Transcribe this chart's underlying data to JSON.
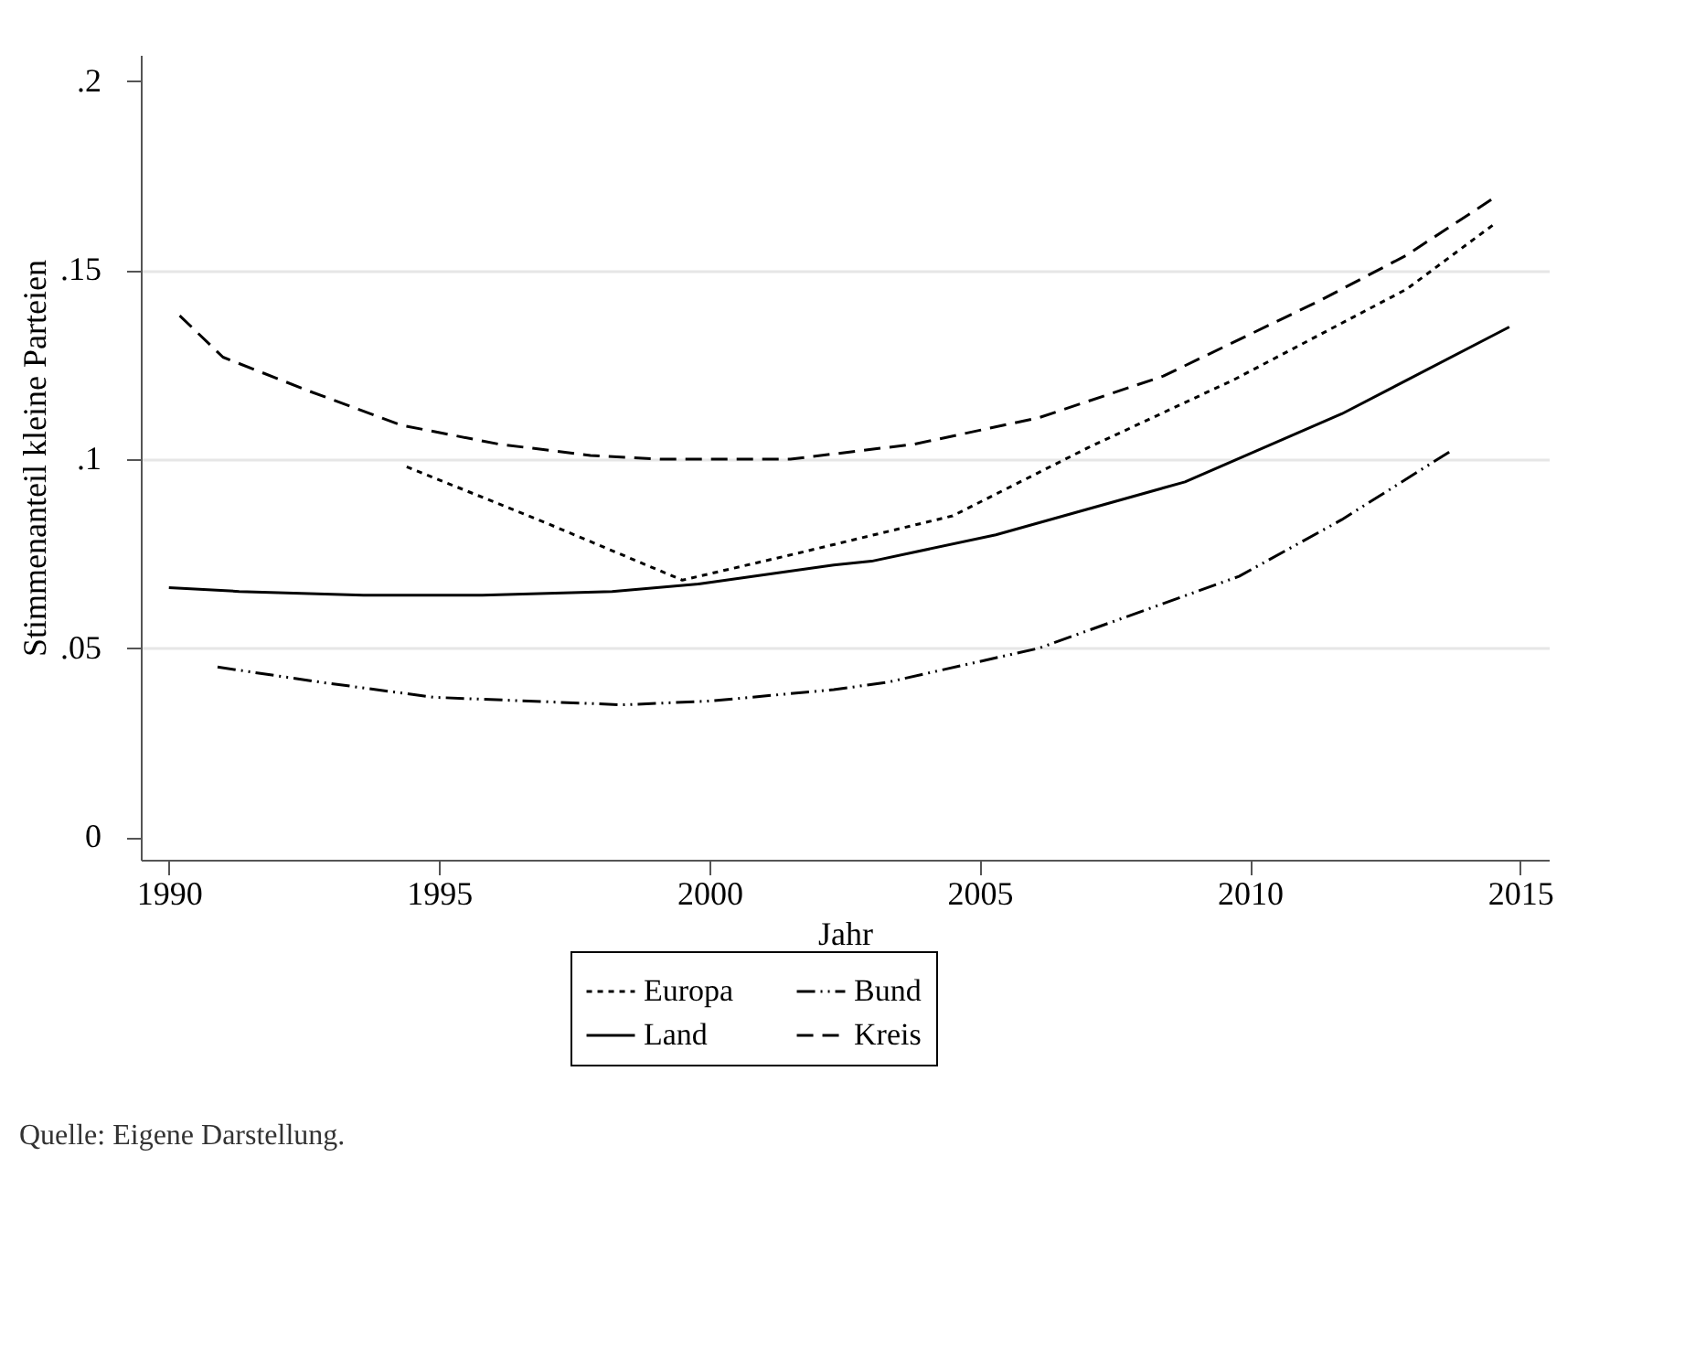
{
  "chart_data": {
    "type": "line",
    "xlabel": "Jahr",
    "ylabel": "Stimmenanteil kleine Parteien",
    "annotations": [
      "Quelle: Eigene Darstellung."
    ],
    "xlim": [
      1989.48,
      2015.53
    ],
    "xticks": [
      1990,
      1995,
      2000,
      2005,
      2010,
      2015
    ],
    "ylim": [
      -0.006,
      0.207
    ],
    "yticks": [
      {
        "value": 0,
        "label": "0"
      },
      {
        "value": 0.05,
        "label": ".05"
      },
      {
        "value": 0.1,
        "label": ".1"
      },
      {
        "value": 0.15,
        "label": ".15"
      },
      {
        "value": 0.2,
        "label": ".2"
      }
    ],
    "grid": "y",
    "legend": "bottom",
    "marker": "none",
    "series": [
      {
        "name": "Europa",
        "color": "#000000",
        "line_style": "dotted",
        "x": [
          1994.4,
          1997.0,
          1999.5,
          2001.6,
          2004.5,
          2007.0,
          2009.7,
          2012.9,
          2014.5
        ],
        "values": [
          0.098,
          0.083,
          0.068,
          0.075,
          0.085,
          0.103,
          0.121,
          0.145,
          0.162
        ]
      },
      {
        "name": "Bund",
        "color": "#000000",
        "line_style": "dashdot",
        "x": [
          1990.9,
          1992.8,
          1994.9,
          1998.4,
          2000.0,
          2002.3,
          2003.3,
          2006.1,
          2009.8,
          2011.7,
          2013.7
        ],
        "values": [
          0.045,
          0.041,
          0.037,
          0.035,
          0.036,
          0.039,
          0.041,
          0.05,
          0.069,
          0.084,
          0.102
        ]
      },
      {
        "name": "Land",
        "color": "#000000",
        "line_style": "solid",
        "x": [
          1990.0,
          1991.3,
          1993.6,
          1995.8,
          1998.2,
          1999.8,
          2002.3,
          2003.0,
          2005.3,
          2008.8,
          2011.7,
          2014.8
        ],
        "values": [
          0.066,
          0.065,
          0.064,
          0.064,
          0.065,
          0.067,
          0.072,
          0.073,
          0.08,
          0.094,
          0.112,
          0.135
        ]
      },
      {
        "name": "Kreis",
        "color": "#000000",
        "line_style": "dashed",
        "x": [
          1990.2,
          1991.0,
          1992.6,
          1994.3,
          1996.1,
          1997.8,
          1999.1,
          2001.5,
          2003.8,
          2006.1,
          2008.4,
          2011.3,
          2012.9,
          2014.5
        ],
        "values": [
          0.138,
          0.127,
          0.118,
          0.109,
          0.104,
          0.101,
          0.1,
          0.1,
          0.104,
          0.111,
          0.122,
          0.142,
          0.154,
          0.169
        ]
      }
    ]
  }
}
